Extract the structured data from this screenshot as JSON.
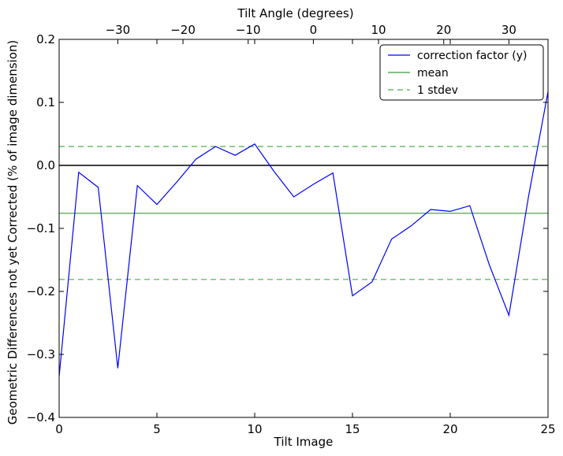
{
  "chart_data": {
    "type": "line",
    "xlabel": "Tilt Image",
    "ylabel": "Geometric Differences not yet Corrected (% of image dimension)",
    "top_xlabel": "Tilt Angle (degrees)",
    "xlim": [
      0,
      25
    ],
    "ylim": [
      -0.4,
      0.2
    ],
    "x_ticks": [
      0,
      5,
      10,
      15,
      20,
      25
    ],
    "y_ticks": [
      -0.4,
      -0.3,
      -0.2,
      -0.1,
      0.0,
      0.1,
      0.2
    ],
    "y_tick_labels": [
      "−0.4",
      "−0.3",
      "−0.2",
      "−0.1",
      "0.0",
      "0.1",
      "0.2"
    ],
    "top_x_ticks": [
      -30,
      -20,
      -10,
      0,
      10,
      20,
      30
    ],
    "top_x_tick_labels": [
      "−30",
      "−20",
      "−10",
      "0",
      "10",
      "20",
      "30"
    ],
    "top_xlim": [
      -39,
      36
    ],
    "grid": false,
    "legend_position": "top-right",
    "series": [
      {
        "name": "correction factor (y)",
        "color": "#0000ff",
        "style": "solid",
        "x": [
          0,
          1,
          2,
          3,
          4,
          5,
          6,
          7,
          8,
          9,
          10,
          11,
          12,
          13,
          14,
          15,
          16,
          17,
          18,
          19,
          20,
          21,
          22,
          23,
          24,
          25
        ],
        "y": [
          -0.335,
          -0.011,
          -0.035,
          -0.322,
          -0.032,
          -0.062,
          -0.027,
          0.01,
          0.03,
          0.016,
          0.034,
          -0.01,
          -0.05,
          -0.03,
          -0.012,
          -0.207,
          -0.185,
          -0.117,
          -0.096,
          -0.07,
          -0.073,
          -0.064,
          -0.158,
          -0.238,
          -0.05,
          0.117
        ]
      },
      {
        "name": "mean",
        "color": "#008000",
        "style": "solid",
        "y_const": -0.076
      },
      {
        "name": "1 stdev",
        "color": "#008000",
        "style": "dashed",
        "y_const": [
          0.03,
          -0.181
        ]
      }
    ],
    "zero_line": {
      "y": 0.0,
      "color": "#000000"
    }
  }
}
